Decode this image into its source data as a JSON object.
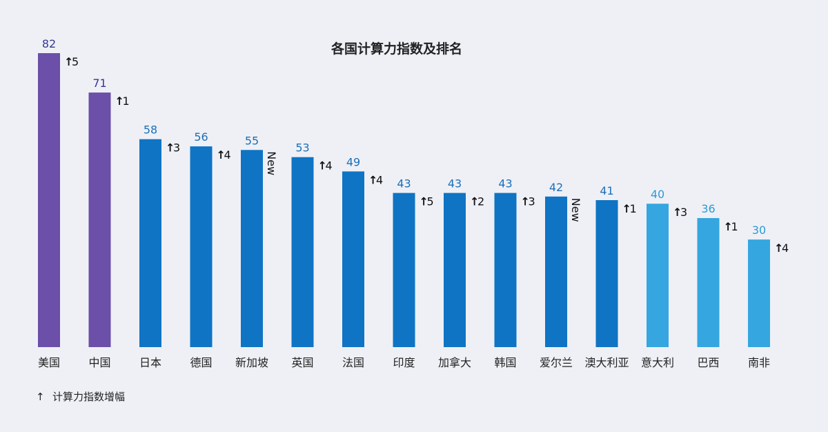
{
  "chart_data": {
    "type": "bar",
    "title": "各国计算力指数及排名",
    "xlabel": "",
    "ylabel": "",
    "ylim": [
      0,
      82
    ],
    "grid": false,
    "categories": [
      "美国",
      "中国",
      "日本",
      "德国",
      "新加坡",
      "英国",
      "法国",
      "印度",
      "加拿大",
      "韩国",
      "爱尔兰",
      "澳大利亚",
      "意大利",
      "巴西",
      "南非"
    ],
    "values": [
      82,
      71,
      58,
      56,
      55,
      53,
      49,
      43,
      43,
      43,
      42,
      41,
      40,
      36,
      30
    ],
    "changes": [
      "5",
      "1",
      "3",
      "4",
      "New",
      "4",
      "4",
      "5",
      "2",
      "3",
      "New",
      "1",
      "3",
      "1",
      "4"
    ],
    "bar_colors": [
      "#6b4fa8",
      "#6b4fa8",
      "#0f74c4",
      "#0f74c4",
      "#0f74c4",
      "#0f74c4",
      "#0f74c4",
      "#0f74c4",
      "#0f74c4",
      "#0f74c4",
      "#0f74c4",
      "#0f74c4",
      "#35a6e0",
      "#35a6e0",
      "#35a6e0"
    ],
    "legend": {
      "symbol": "↑",
      "text": "计算力指数增幅",
      "position": "bottom-left"
    }
  },
  "colors": {
    "background": "#eef0f6",
    "leader": "#6b4fa8",
    "mid": "#0f74c4",
    "low": "#35a6e0",
    "value_label_leader": "#3a3590",
    "value_label_mid": "#1d6fb8",
    "value_label_low": "#2a9bd5",
    "text": "#222222"
  }
}
